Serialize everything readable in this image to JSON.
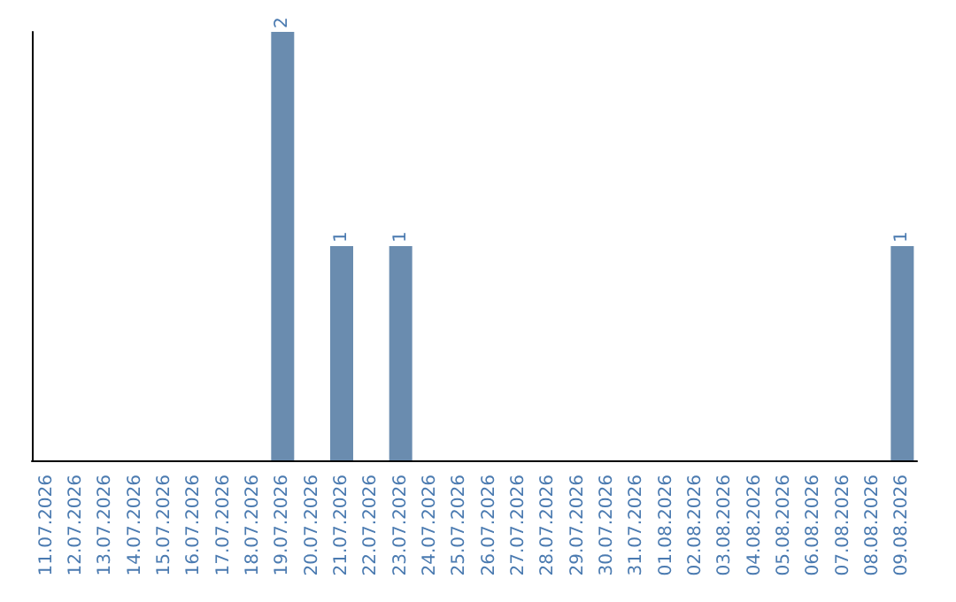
{
  "chart_data": {
    "type": "bar",
    "categories": [
      "11.07.2026",
      "12.07.2026",
      "13.07.2026",
      "14.07.2026",
      "15.07.2026",
      "16.07.2026",
      "17.07.2026",
      "18.07.2026",
      "19.07.2026",
      "20.07.2026",
      "21.07.2026",
      "22.07.2026",
      "23.07.2026",
      "24.07.2026",
      "25.07.2026",
      "26.07.2026",
      "27.07.2026",
      "28.07.2026",
      "29.07.2026",
      "30.07.2026",
      "31.07.2026",
      "01.08.2026",
      "02.08.2026",
      "03.08.2026",
      "04.08.2026",
      "05.08.2026",
      "06.08.2026",
      "07.08.2026",
      "08.08.2026",
      "09.08.2026"
    ],
    "values": [
      0,
      0,
      0,
      0,
      0,
      0,
      0,
      0,
      2,
      0,
      1,
      0,
      1,
      0,
      0,
      0,
      0,
      0,
      0,
      0,
      0,
      0,
      0,
      0,
      0,
      0,
      0,
      0,
      0,
      1
    ],
    "value_labels": [
      null,
      null,
      null,
      null,
      null,
      null,
      null,
      null,
      "2",
      null,
      "1",
      null,
      "1",
      null,
      null,
      null,
      null,
      null,
      null,
      null,
      null,
      null,
      null,
      null,
      null,
      null,
      null,
      null,
      null,
      "1"
    ],
    "color": "#6a8caf",
    "tick_labels": "x",
    "grid": false
  }
}
